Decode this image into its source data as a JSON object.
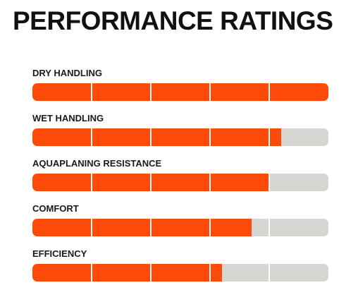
{
  "title": "PERFORMANCE RATINGS",
  "colors": {
    "fill": "#fe4a08",
    "track": "#d6d5d2",
    "divider": "#ffffff",
    "text": "#111111"
  },
  "scale_segments": 5,
  "ratings": [
    {
      "label": "DRY HANDLING",
      "value": 5.0
    },
    {
      "label": "WET HANDLING",
      "value": 4.2
    },
    {
      "label": "AQUAPLANING RESISTANCE",
      "value": 4.0
    },
    {
      "label": "COMFORT",
      "value": 3.7
    },
    {
      "label": "EFFICIENCY",
      "value": 3.2
    }
  ]
}
